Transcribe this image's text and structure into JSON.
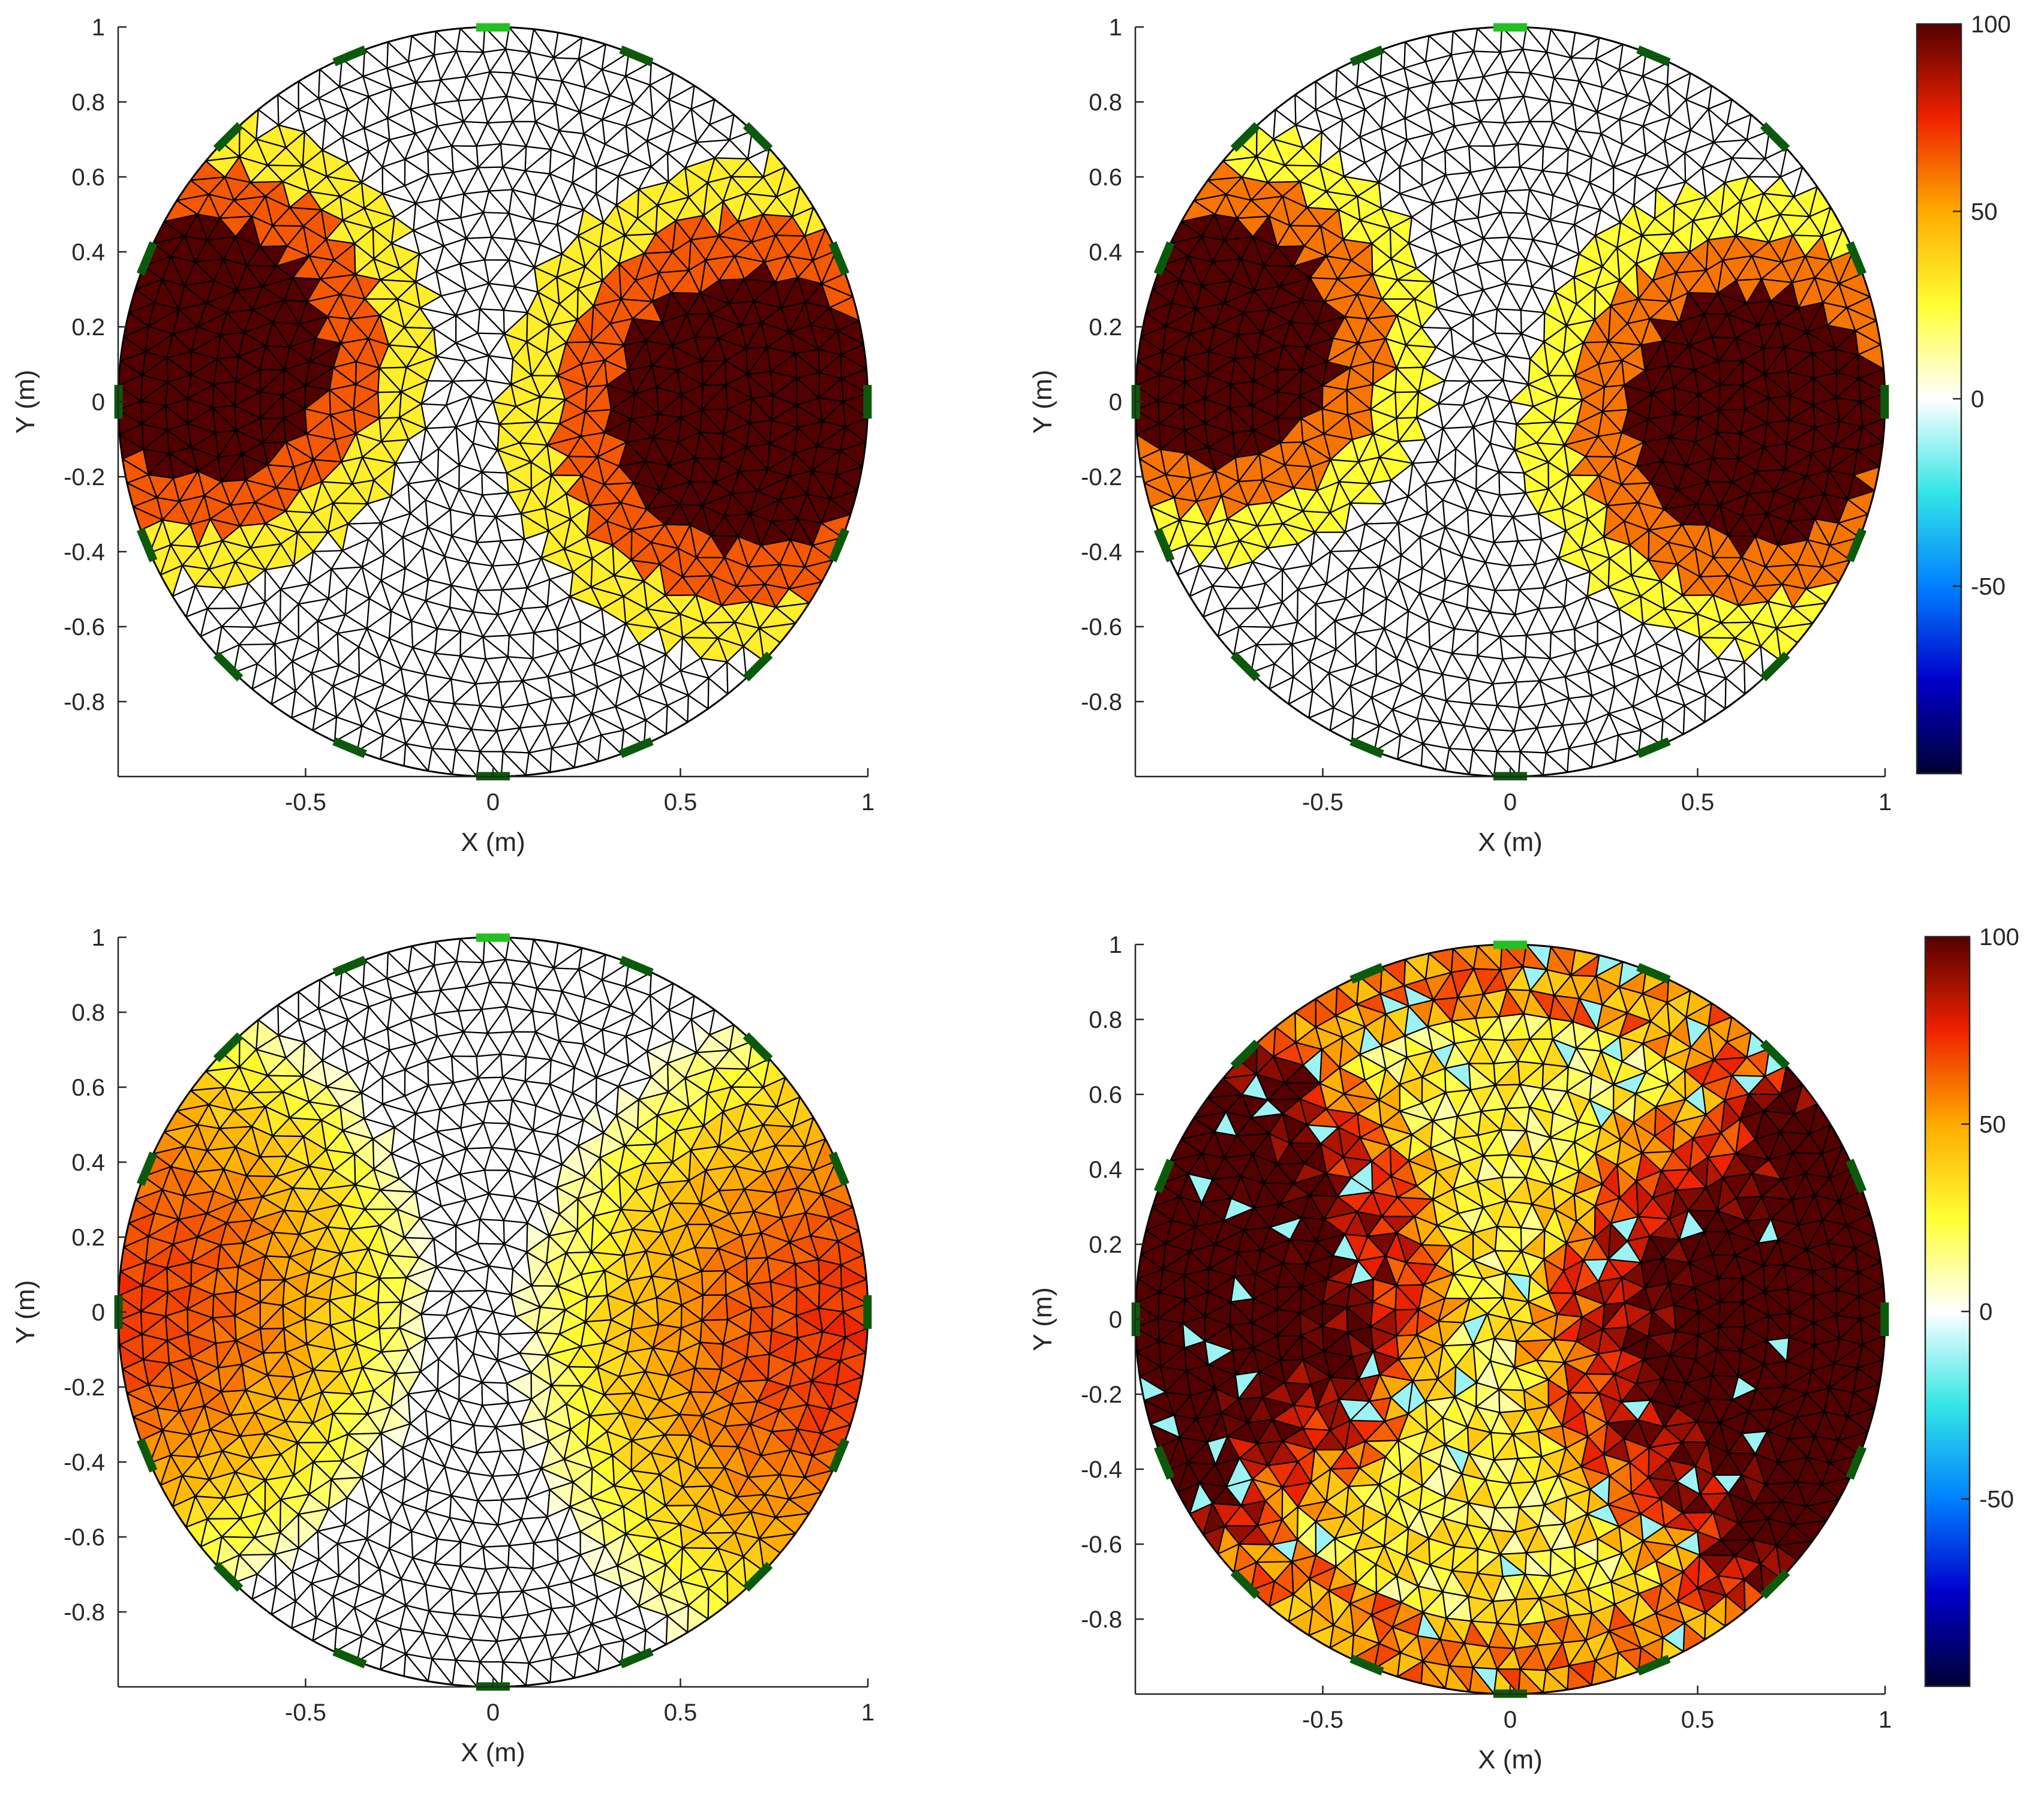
{
  "colors": {
    "mesh_edge": "#000000",
    "electrode": "#0b5a0b",
    "electrode_first": "#22c022",
    "axis": "#262626",
    "colormap": [
      "#000033",
      "#0000cc",
      "#0080ff",
      "#33e6e6",
      "#ffffff",
      "#ffff33",
      "#ffaa00",
      "#ee2200",
      "#550000"
    ]
  },
  "chart_data": [
    {
      "type": "heatmap",
      "name": "top-left",
      "title": "",
      "xlabel": "X (m)",
      "ylabel": "Y (m)",
      "xlim": [
        -1,
        1
      ],
      "ylim": [
        -1,
        1
      ],
      "xticks": [
        -0.5,
        0,
        0.5,
        1
      ],
      "xtick_labels": [
        "-0.5",
        "0",
        "0.5",
        "1"
      ],
      "yticks": [
        -0.8,
        -0.6,
        -0.4,
        -0.2,
        0,
        0.2,
        0.4,
        0.6,
        0.8,
        1
      ],
      "ytick_labels": [
        "-0.8",
        "-0.6",
        "-0.4",
        "-0.2",
        "0",
        "0.2",
        "0.4",
        "0.6",
        "0.8",
        "1"
      ],
      "electrodes": 16,
      "inclusions": [
        {
          "cx": -0.78,
          "cy": 0.14,
          "r": 0.62,
          "peak": 100
        },
        {
          "cx": 0.68,
          "cy": -0.02,
          "r": 0.66,
          "peak": 100
        }
      ],
      "levels": [
        [
          0.4,
          30
        ],
        [
          0.62,
          65
        ],
        [
          1.0,
          100
        ]
      ],
      "colorbar": null
    },
    {
      "type": "heatmap",
      "name": "top-right",
      "title": "",
      "xlabel": "X (m)",
      "ylabel": "Y (m)",
      "xlim": [
        -1,
        1
      ],
      "ylim": [
        -1,
        1
      ],
      "xticks": [
        -0.5,
        0,
        0.5,
        1
      ],
      "xtick_labels": [
        "-0.5",
        "0",
        "0.5",
        "1"
      ],
      "yticks": [
        -0.8,
        -0.6,
        -0.4,
        -0.2,
        0,
        0.2,
        0.4,
        0.6,
        0.8,
        1
      ],
      "ytick_labels": [
        "-0.8",
        "-0.6",
        "-0.4",
        "-0.2",
        "0",
        "0.2",
        "0.4",
        "0.6",
        "0.8",
        "1"
      ],
      "electrodes": 16,
      "inclusions": [
        {
          "cx": -0.78,
          "cy": 0.16,
          "r": 0.58,
          "peak": 100
        },
        {
          "cx": 0.65,
          "cy": -0.04,
          "r": 0.62,
          "peak": 100
        }
      ],
      "levels": [
        [
          0.35,
          25
        ],
        [
          0.55,
          60
        ],
        [
          1.0,
          100
        ]
      ],
      "colorbar": {
        "min": -100,
        "max": 100,
        "ticks": [
          100,
          50,
          0,
          -50
        ],
        "tick_labels": [
          "100",
          "50",
          "0",
          "-50"
        ]
      }
    },
    {
      "type": "heatmap",
      "name": "bottom-left",
      "title": "",
      "xlabel": "X (m)",
      "ylabel": "Y (m)",
      "xlim": [
        -1,
        1
      ],
      "ylim": [
        -1,
        1
      ],
      "xticks": [
        -0.5,
        0,
        0.5,
        1
      ],
      "xtick_labels": [
        "-0.5",
        "0",
        "0.5",
        "1"
      ],
      "yticks": [
        -0.8,
        -0.6,
        -0.4,
        -0.2,
        0,
        0.2,
        0.4,
        0.6,
        0.8,
        1
      ],
      "ytick_labels": [
        "-0.8",
        "-0.6",
        "-0.4",
        "-0.2",
        "0",
        "0.2",
        "0.4",
        "0.6",
        "0.8",
        "1"
      ],
      "electrodes": 16,
      "inclusions": [
        {
          "cx": -1.0,
          "cy": 0.05,
          "r": 0.85,
          "peak": 70
        },
        {
          "cx": 1.0,
          "cy": -0.08,
          "r": 0.95,
          "peak": 72
        }
      ],
      "levels": null,
      "colorbar": null
    },
    {
      "type": "heatmap",
      "name": "bottom-right",
      "title": "",
      "xlabel": "X (m)",
      "ylabel": "Y (m)",
      "xlim": [
        -1,
        1
      ],
      "ylim": [
        -1,
        1
      ],
      "xticks": [
        -0.5,
        0,
        0.5,
        1
      ],
      "xtick_labels": [
        "-0.5",
        "0",
        "0.5",
        "1"
      ],
      "yticks": [
        -0.8,
        -0.6,
        -0.4,
        -0.2,
        0,
        0.2,
        0.4,
        0.6,
        0.8,
        1
      ],
      "ytick_labels": [
        "-0.8",
        "-0.6",
        "-0.4",
        "-0.2",
        "0",
        "0.2",
        "0.4",
        "0.6",
        "0.8",
        "1"
      ],
      "electrodes": 16,
      "inclusions": [
        {
          "cx": -0.85,
          "cy": 0.1,
          "r": 0.75,
          "peak": 100
        },
        {
          "cx": 0.8,
          "cy": -0.05,
          "r": 0.8,
          "peak": 100
        }
      ],
      "levels": null,
      "noisy": true,
      "colorbar": {
        "min": -100,
        "max": 100,
        "ticks": [
          100,
          50,
          0,
          -50
        ],
        "tick_labels": [
          "100",
          "50",
          "0",
          "-50"
        ]
      }
    }
  ]
}
